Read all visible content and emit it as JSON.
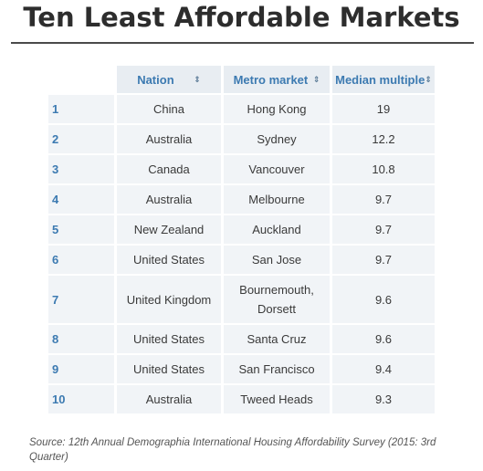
{
  "title": "Ten Least Affordable Markets",
  "table": {
    "headers": {
      "nation": "Nation",
      "metro": "Metro market",
      "median": "Median multiple"
    },
    "sort_icon": "⇕",
    "rows": [
      {
        "rank": "1",
        "nation": "China",
        "metro": "Hong Kong",
        "median": "19"
      },
      {
        "rank": "2",
        "nation": "Australia",
        "metro": "Sydney",
        "median": "12.2"
      },
      {
        "rank": "3",
        "nation": "Canada",
        "metro": "Vancouver",
        "median": "10.8"
      },
      {
        "rank": "4",
        "nation": "Australia",
        "metro": "Melbourne",
        "median": "9.7"
      },
      {
        "rank": "5",
        "nation": "New Zealand",
        "metro": "Auckland",
        "median": "9.7"
      },
      {
        "rank": "6",
        "nation": "United States",
        "metro": "San Jose",
        "median": "9.7"
      },
      {
        "rank": "7",
        "nation": "United Kingdom",
        "metro": "Bournemouth, Dorsett",
        "median": "9.6"
      },
      {
        "rank": "8",
        "nation": "United States",
        "metro": "Santa Cruz",
        "median": "9.6"
      },
      {
        "rank": "9",
        "nation": "United States",
        "metro": "San Francisco",
        "median": "9.4"
      },
      {
        "rank": "10",
        "nation": "Australia",
        "metro": "Tweed Heads",
        "median": "9.3"
      }
    ]
  },
  "source": "Source: 12th Annual Demographia International Housing Affordability Survey (2015: 3rd Quarter)",
  "colors": {
    "header_text": "#3c7ab1",
    "header_bg": "#e8edf2",
    "cell_bg": "#f1f4f7",
    "rank_text": "#3c7ab1"
  }
}
